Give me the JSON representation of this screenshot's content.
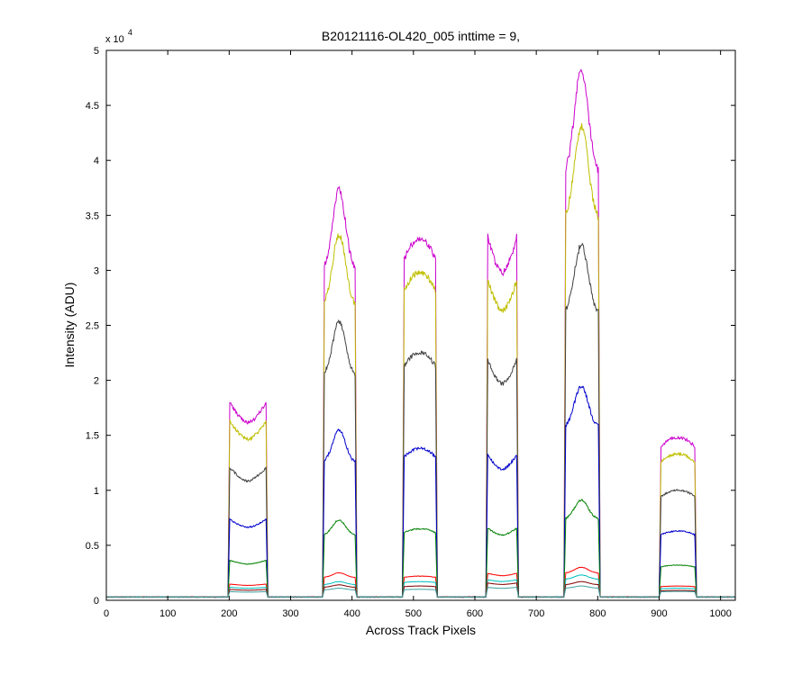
{
  "chart_data": {
    "type": "line",
    "title": "B20121116-OL420_005 inttime = 9,",
    "xlabel": "Across Track Pixels",
    "ylabel": "Intensity (ADU)",
    "y_exponent": {
      "prefix": "x 10",
      "power": "4"
    },
    "xlim": [
      0,
      1024
    ],
    "ylim": [
      0,
      5
    ],
    "xticks": [
      0,
      100,
      200,
      300,
      400,
      500,
      600,
      700,
      800,
      900,
      1000
    ],
    "yticks": [
      0,
      0.5,
      1,
      1.5,
      2,
      2.5,
      3,
      3.5,
      4,
      4.5,
      5
    ],
    "xtick_labels": [
      "0",
      "100",
      "200",
      "300",
      "400",
      "500",
      "600",
      "700",
      "800",
      "900",
      "1000"
    ],
    "ytick_labels": [
      "0",
      "0.5",
      "1",
      "1.5",
      "2",
      "2.5",
      "3",
      "3.5",
      "4",
      "4.5",
      "5"
    ],
    "grid": false,
    "background_level": 0.03,
    "peaks": [
      {
        "start": 198,
        "end": 263,
        "shape": "saddle"
      },
      {
        "start": 352,
        "end": 408,
        "shape": "dome"
      },
      {
        "start": 482,
        "end": 539,
        "shape": "flat"
      },
      {
        "start": 618,
        "end": 671,
        "shape": "saddle"
      },
      {
        "start": 745,
        "end": 804,
        "shape": "dome"
      },
      {
        "start": 900,
        "end": 961,
        "shape": "flat"
      }
    ],
    "series": [
      {
        "color": "#cc00cc",
        "amplitudes": [
          1.8,
          3.7,
          3.25,
          3.35,
          4.8,
          1.45
        ]
      },
      {
        "color": "#bfbf00",
        "amplitudes": [
          1.63,
          3.3,
          2.95,
          2.95,
          4.28,
          1.3
        ]
      },
      {
        "color": "#404040",
        "amplitudes": [
          1.2,
          2.5,
          2.22,
          2.2,
          3.2,
          0.97
        ]
      },
      {
        "color": "#0000cc",
        "amplitudes": [
          0.72,
          1.52,
          1.35,
          1.32,
          1.92,
          0.6
        ]
      },
      {
        "color": "#008000",
        "amplitudes": [
          0.34,
          0.7,
          0.62,
          0.64,
          0.88,
          0.29
        ]
      },
      {
        "color": "#ff0000",
        "amplitudes": [
          0.12,
          0.22,
          0.19,
          0.22,
          0.27,
          0.1
        ]
      },
      {
        "color": "#00bfbf",
        "amplitudes": [
          0.09,
          0.14,
          0.14,
          0.16,
          0.2,
          0.08
        ]
      },
      {
        "color": "#800000",
        "amplitudes": [
          0.07,
          0.11,
          0.1,
          0.13,
          0.14,
          0.06
        ]
      },
      {
        "color": "#40a0a0",
        "amplitudes": [
          0.05,
          0.08,
          0.07,
          0.09,
          0.1,
          0.05
        ]
      }
    ]
  }
}
